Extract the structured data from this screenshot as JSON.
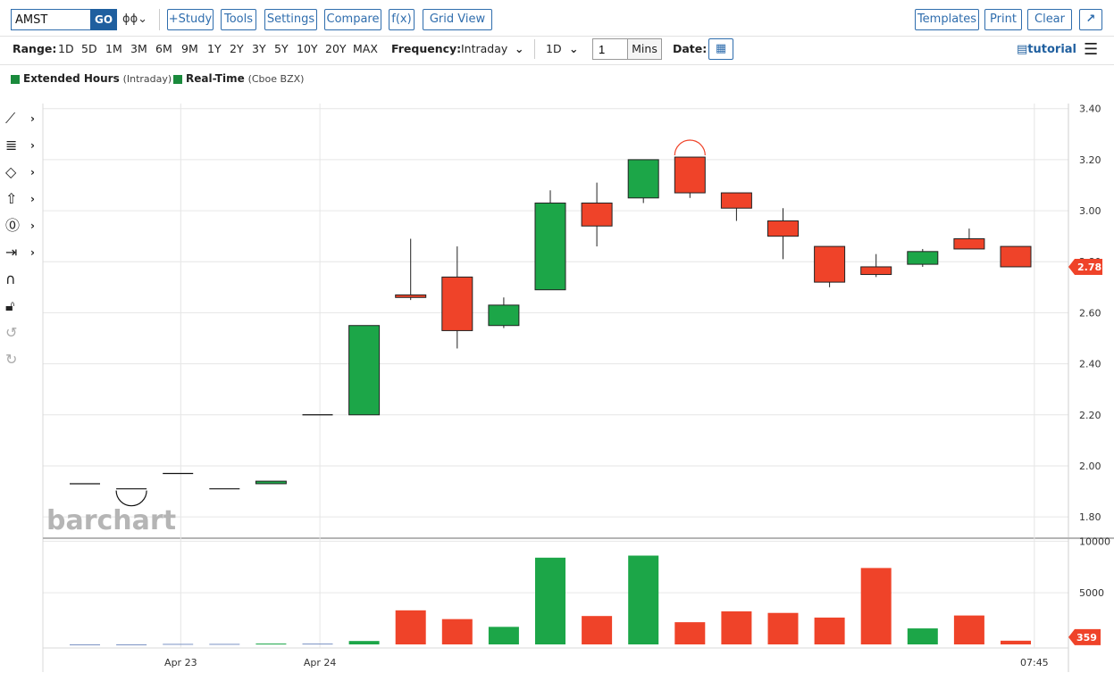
{
  "toolbar": {
    "symbol": "AMST",
    "go_label": "GO",
    "chart_type_icon": "candlestick-icon",
    "study_label": "+Study",
    "tools_label": "Tools",
    "settings_label": "Settings",
    "compare_label": "Compare",
    "fx_label": "f(x)",
    "gridview_label": "Grid View",
    "templates_label": "Templates",
    "print_label": "Print",
    "clear_label": "Clear",
    "expand_icon": "expand-arrow-icon"
  },
  "range_bar": {
    "range_label": "Range:",
    "ranges": [
      "1D",
      "5D",
      "1M",
      "3M",
      "6M",
      "9M",
      "1Y",
      "2Y",
      "3Y",
      "5Y",
      "10Y",
      "20Y",
      "MAX"
    ],
    "frequency_label": "Frequency:",
    "frequency_value": "Intraday",
    "period_value": "1D",
    "interval_value": "1",
    "interval_unit": "Mins",
    "date_label": "Date:",
    "tutorial_label": "tutorial"
  },
  "legend": {
    "items": [
      {
        "name": "Extended Hours",
        "note": "(Intraday)",
        "color": "#1a8a3c"
      },
      {
        "name": "Real-Time",
        "note": "(Cboe BZX)",
        "color": "#1a8a3c"
      }
    ]
  },
  "watermark": "barchart",
  "colors": {
    "up": "#1ca648",
    "down": "#ef4329",
    "grid": "#e6e6e6",
    "accent": "#2f6dad"
  },
  "chart_data": {
    "type": "candlestick",
    "price_axis": {
      "ticks": [
        "3.40",
        "3.20",
        "3.00",
        "2.80",
        "2.60",
        "2.40",
        "2.20",
        "2.00",
        "1.80"
      ],
      "ylim": [
        1.72,
        3.42
      ]
    },
    "volume_axis": {
      "ticks": [
        "5000",
        "10000"
      ],
      "ylim": [
        0,
        10200
      ]
    },
    "x_labels": [
      "Apr 23",
      "Apr 24",
      "07:45"
    ],
    "last_price_label": "2.78",
    "last_volume_label": "359",
    "candles": [
      {
        "o": 1.93,
        "h": 1.93,
        "l": 1.93,
        "c": 1.93,
        "v": 0,
        "dir": "flat"
      },
      {
        "o": 1.91,
        "h": 1.91,
        "l": 1.91,
        "c": 1.91,
        "v": 0,
        "dir": "flat"
      },
      {
        "o": 1.97,
        "h": 1.97,
        "l": 1.97,
        "c": 1.97,
        "v": 50,
        "dir": "flat"
      },
      {
        "o": 1.91,
        "h": 1.91,
        "l": 1.91,
        "c": 1.91,
        "v": 50,
        "dir": "flat"
      },
      {
        "o": 1.93,
        "h": 1.94,
        "l": 1.93,
        "c": 1.94,
        "v": 80,
        "dir": "up"
      },
      {
        "o": 2.2,
        "h": 2.2,
        "l": 2.2,
        "c": 2.2,
        "v": 80,
        "dir": "flat"
      },
      {
        "o": 2.2,
        "h": 2.55,
        "l": 2.2,
        "c": 2.55,
        "v": 330,
        "dir": "up"
      },
      {
        "o": 2.67,
        "h": 2.89,
        "l": 2.65,
        "c": 2.66,
        "v": 3300,
        "dir": "down"
      },
      {
        "o": 2.74,
        "h": 2.86,
        "l": 2.46,
        "c": 2.53,
        "v": 2450,
        "dir": "down"
      },
      {
        "o": 2.55,
        "h": 2.66,
        "l": 2.54,
        "c": 2.63,
        "v": 1700,
        "dir": "up"
      },
      {
        "o": 2.69,
        "h": 3.08,
        "l": 2.69,
        "c": 3.03,
        "v": 8400,
        "dir": "up"
      },
      {
        "o": 3.03,
        "h": 3.11,
        "l": 2.86,
        "c": 2.94,
        "v": 2750,
        "dir": "down"
      },
      {
        "o": 3.05,
        "h": 3.2,
        "l": 3.03,
        "c": 3.2,
        "v": 8600,
        "dir": "up"
      },
      {
        "o": 3.21,
        "h": 3.21,
        "l": 3.05,
        "c": 3.07,
        "v": 2150,
        "dir": "down"
      },
      {
        "o": 3.07,
        "h": 3.07,
        "l": 2.96,
        "c": 3.01,
        "v": 3200,
        "dir": "down"
      },
      {
        "o": 2.96,
        "h": 3.01,
        "l": 2.81,
        "c": 2.9,
        "v": 3050,
        "dir": "down"
      },
      {
        "o": 2.86,
        "h": 2.86,
        "l": 2.7,
        "c": 2.72,
        "v": 2600,
        "dir": "down"
      },
      {
        "o": 2.78,
        "h": 2.83,
        "l": 2.74,
        "c": 2.75,
        "v": 7400,
        "dir": "down"
      },
      {
        "o": 2.79,
        "h": 2.85,
        "l": 2.78,
        "c": 2.84,
        "v": 1550,
        "dir": "up"
      },
      {
        "o": 2.89,
        "h": 2.93,
        "l": 2.85,
        "c": 2.85,
        "v": 2800,
        "dir": "down"
      },
      {
        "o": 2.86,
        "h": 2.86,
        "l": 2.78,
        "c": 2.78,
        "v": 359,
        "dir": "down"
      }
    ],
    "max_marker_index": 13,
    "min_marker_index": 1
  }
}
